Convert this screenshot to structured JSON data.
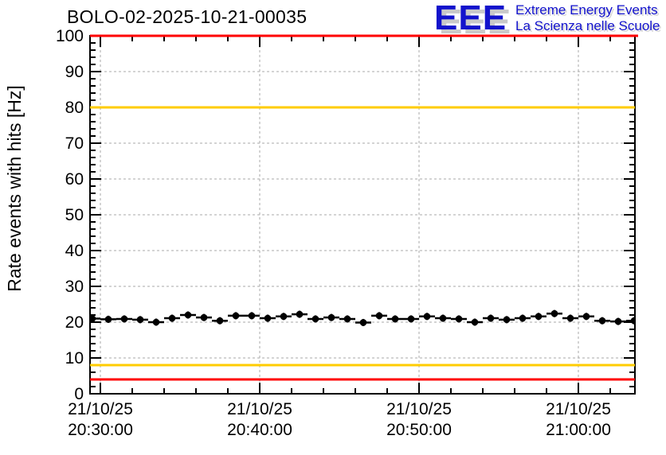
{
  "header": {
    "title": "BOLO-02-2025-10-21-00035",
    "logo": {
      "acronym": "EEE",
      "line1": "Extreme Energy Events",
      "line2": "La Scienza nelle Scuole",
      "color": "#1212cc",
      "shadow_color": "#c9c9c9"
    }
  },
  "chart_data": {
    "type": "scatter",
    "title": "BOLO-02-2025-10-21-00035",
    "xlabel": "",
    "ylabel": "Rate events with hits [Hz]",
    "ylim": [
      0,
      100
    ],
    "y_major_ticks": [
      0,
      10,
      20,
      30,
      40,
      50,
      60,
      70,
      80,
      90,
      100
    ],
    "y_minor_step": 2,
    "xlim_s": [
      -39,
      2013
    ],
    "x_minor_step_s": 120,
    "x_ticks": [
      {
        "t_s": 0,
        "date": "21/10/25",
        "time": "20:30:00"
      },
      {
        "t_s": 600,
        "date": "21/10/25",
        "time": "20:40:00"
      },
      {
        "t_s": 1200,
        "date": "21/10/25",
        "time": "20:50:00"
      },
      {
        "t_s": 1800,
        "date": "21/10/25",
        "time": "21:00:00"
      }
    ],
    "grid": {
      "on": true,
      "style": "dashed",
      "color": "#aaaaaa"
    },
    "legend_position": "none",
    "reference_lines": [
      {
        "name": "alarm-high",
        "value_hz": 100,
        "color": "#ff0000"
      },
      {
        "name": "warning-high",
        "value_hz": 80,
        "color": "#ffcc00"
      },
      {
        "name": "warning-low",
        "value_hz": 8,
        "color": "#ffcc00"
      },
      {
        "name": "alarm-low",
        "value_hz": 4,
        "color": "#ff0000"
      }
    ],
    "series": [
      {
        "name": "rate-events-with-hits",
        "marker": "filled-circle",
        "color": "#000000",
        "bin_width_s": 60,
        "err_hz": 1.0,
        "t_s": [
          -30,
          30,
          90,
          150,
          210,
          270,
          330,
          390,
          450,
          510,
          570,
          630,
          690,
          750,
          810,
          870,
          930,
          990,
          1050,
          1110,
          1170,
          1230,
          1290,
          1350,
          1410,
          1470,
          1530,
          1590,
          1650,
          1710,
          1770,
          1830,
          1890,
          1950,
          2010
        ],
        "hz": [
          21.0,
          20.8,
          20.9,
          20.7,
          20.0,
          21.1,
          22.0,
          21.3,
          20.4,
          21.8,
          21.8,
          21.1,
          21.6,
          22.2,
          20.9,
          21.3,
          20.9,
          19.9,
          21.8,
          20.9,
          20.9,
          21.6,
          21.1,
          20.9,
          20.0,
          21.1,
          20.7,
          21.1,
          21.6,
          22.4,
          21.1,
          21.6,
          20.4,
          20.2,
          20.4
        ]
      }
    ]
  }
}
